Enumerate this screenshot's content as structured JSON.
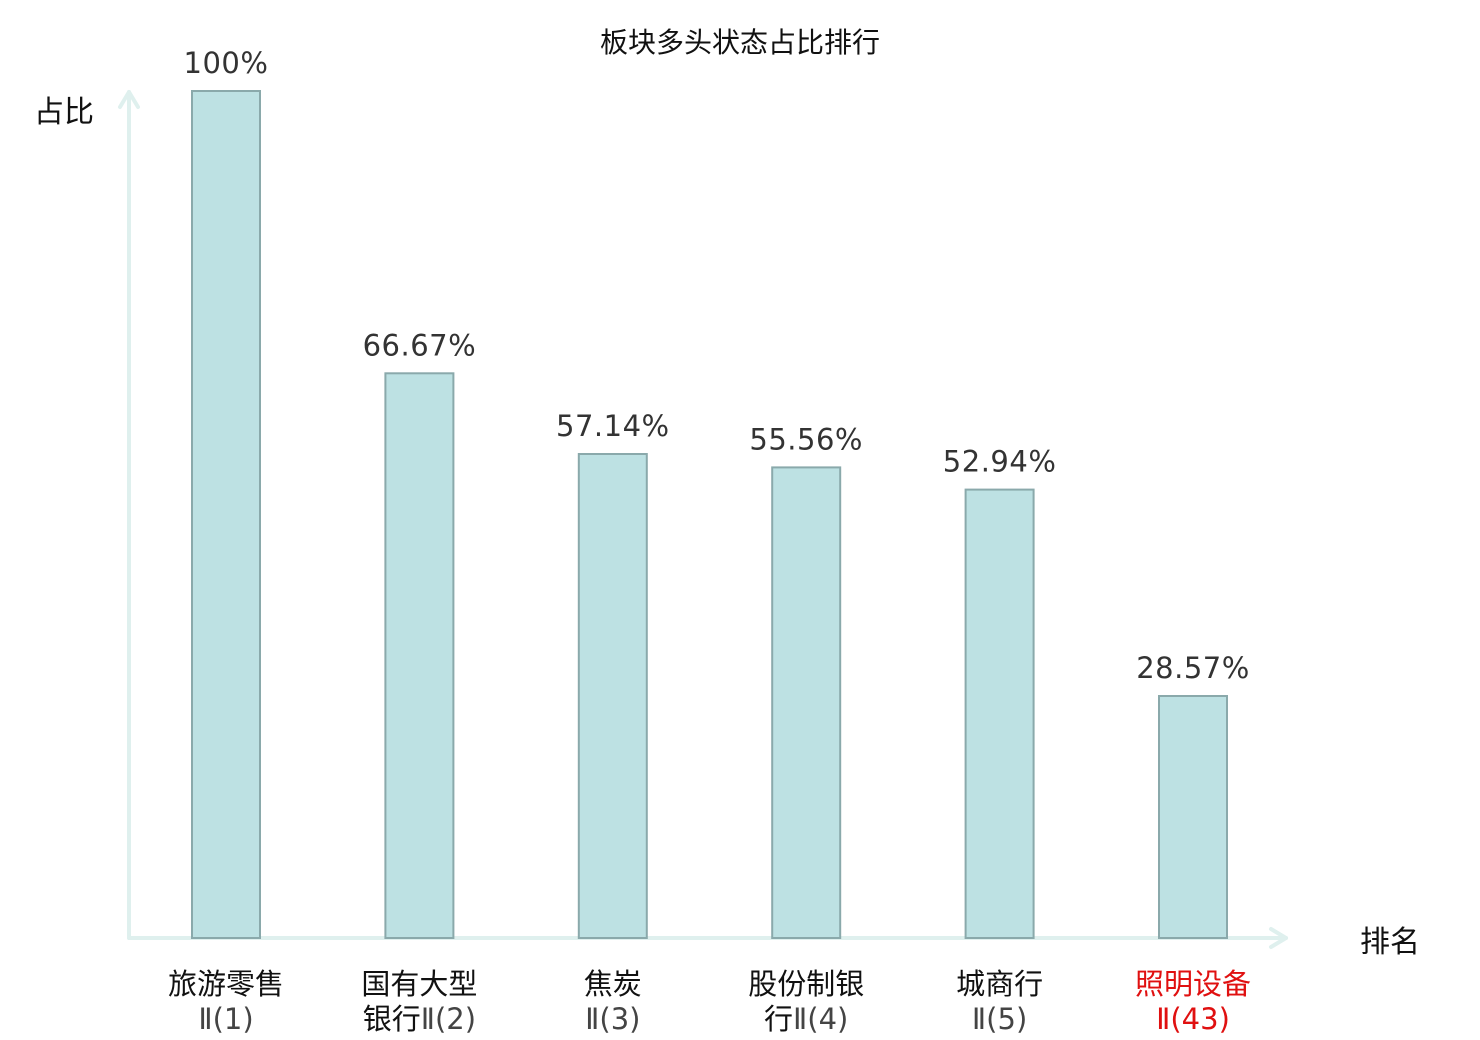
{
  "chart_data": {
    "type": "bar",
    "title": "板块多头状态占比排行",
    "ylabel": "占比",
    "xlabel": "排名",
    "ylim": [
      0,
      100
    ],
    "grid": false,
    "legend": "none",
    "bar_color": "#bde1e3",
    "bar_border_color": "#8aa9ab",
    "axis_color": "#dff0ee",
    "highlight_color": "#e01010",
    "categories": [
      {
        "name": "旅游零售",
        "rank": "Ⅱ(1)",
        "highlight": false
      },
      {
        "name": "国有大型银行",
        "rank": "Ⅱ(2)",
        "highlight": false
      },
      {
        "name": "焦炭",
        "rank": "Ⅱ(3)",
        "highlight": false
      },
      {
        "name": "股份制银行",
        "rank": "Ⅱ(4)",
        "highlight": false
      },
      {
        "name": "城商行",
        "rank": "Ⅱ(5)",
        "highlight": false
      },
      {
        "name": "照明设备",
        "rank": "Ⅱ(43)",
        "highlight": true
      }
    ],
    "values": [
      100,
      66.67,
      57.14,
      55.56,
      52.94,
      28.57
    ],
    "value_labels": [
      "100%",
      "66.67%",
      "57.14%",
      "55.56%",
      "52.94%",
      "28.57%"
    ]
  }
}
